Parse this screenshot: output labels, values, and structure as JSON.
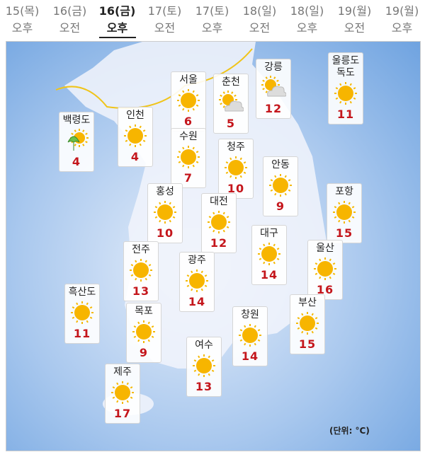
{
  "tabs": [
    {
      "date": "15(목)",
      "period": "오후"
    },
    {
      "date": "16(금)",
      "period": "오전"
    },
    {
      "date": "16(금)",
      "period": "오후",
      "active": true
    },
    {
      "date": "17(토)",
      "period": "오전"
    },
    {
      "date": "17(토)",
      "period": "오후"
    },
    {
      "date": "18(일)",
      "period": "오전"
    },
    {
      "date": "18(일)",
      "period": "오후"
    },
    {
      "date": "19(월)",
      "period": "오전"
    },
    {
      "date": "19(월)",
      "period": "오후"
    }
  ],
  "cities": [
    {
      "name": "백령도",
      "temp": 4,
      "weather": "rain-sun"
    },
    {
      "name": "인천",
      "temp": 4,
      "weather": "sunny"
    },
    {
      "name": "서울",
      "temp": 6,
      "weather": "sunny"
    },
    {
      "name": "춘천",
      "temp": 5,
      "weather": "partly-cloudy"
    },
    {
      "name": "강릉",
      "temp": 12,
      "weather": "partly-cloudy"
    },
    {
      "name": "울릉도\n독도",
      "temp": 11,
      "weather": "sunny"
    },
    {
      "name": "수원",
      "temp": 7,
      "weather": "sunny"
    },
    {
      "name": "청주",
      "temp": 10,
      "weather": "sunny"
    },
    {
      "name": "안동",
      "temp": 9,
      "weather": "sunny"
    },
    {
      "name": "홍성",
      "temp": 10,
      "weather": "sunny"
    },
    {
      "name": "대전",
      "temp": 12,
      "weather": "sunny"
    },
    {
      "name": "포항",
      "temp": 15,
      "weather": "sunny"
    },
    {
      "name": "전주",
      "temp": 13,
      "weather": "sunny"
    },
    {
      "name": "광주",
      "temp": 14,
      "weather": "sunny"
    },
    {
      "name": "대구",
      "temp": 14,
      "weather": "sunny"
    },
    {
      "name": "울산",
      "temp": 16,
      "weather": "sunny"
    },
    {
      "name": "흑산도",
      "temp": 11,
      "weather": "sunny"
    },
    {
      "name": "목포",
      "temp": 9,
      "weather": "sunny"
    },
    {
      "name": "창원",
      "temp": 14,
      "weather": "sunny"
    },
    {
      "name": "부산",
      "temp": 15,
      "weather": "sunny"
    },
    {
      "name": "여수",
      "temp": 13,
      "weather": "sunny"
    },
    {
      "name": "제주",
      "temp": 17,
      "weather": "sunny"
    }
  ],
  "unit_note": "(단위: °C)"
}
